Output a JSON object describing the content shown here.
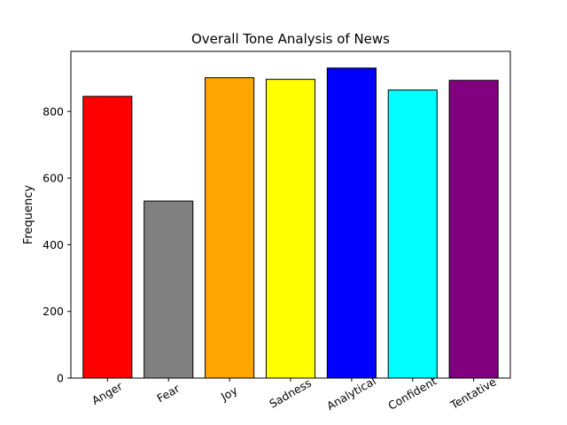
{
  "chart_data": {
    "type": "bar",
    "title": "Overall Tone Analysis of News",
    "xlabel": "",
    "ylabel": "Frequency",
    "ylim": [
      0,
      980
    ],
    "yticks": [
      "0",
      "200",
      "400",
      "600",
      "800"
    ],
    "categories": [
      "Anger",
      "Fear",
      "Joy",
      "Sadness",
      "Analytical",
      "Confident",
      "Tentative"
    ],
    "values": [
      845,
      531,
      901,
      896,
      930,
      864,
      893
    ],
    "colors": [
      "#ff0000",
      "#808080",
      "#ffa500",
      "#ffff00",
      "#0000ff",
      "#00ffff",
      "#800080"
    ],
    "bar_edge_color": "#000000",
    "grid": false,
    "legend": "none"
  }
}
